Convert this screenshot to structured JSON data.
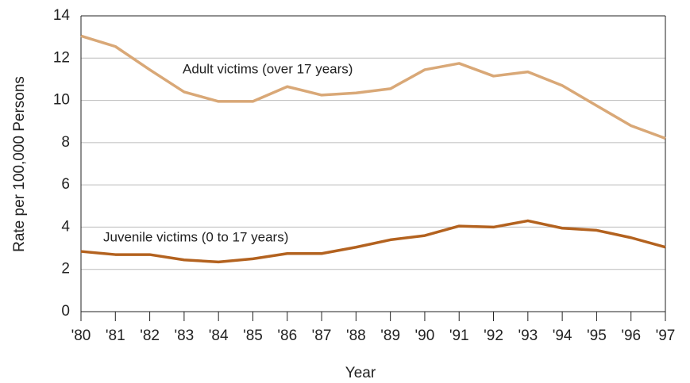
{
  "chart_data": {
    "type": "line",
    "xlabel": "Year",
    "ylabel": "Rate per 100,000 Persons",
    "categories": [
      "'80",
      "'81",
      "'82",
      "'83",
      "'84",
      "'85",
      "'86",
      "'87",
      "'88",
      "'89",
      "'90",
      "'91",
      "'92",
      "'93",
      "'94",
      "'95",
      "'96",
      "'97"
    ],
    "series": [
      {
        "name": "Adult victims (over 17 years)",
        "color": "#d9a877",
        "values": [
          13.05,
          12.55,
          11.45,
          10.4,
          9.95,
          9.95,
          10.65,
          10.25,
          10.35,
          10.55,
          11.45,
          11.75,
          11.15,
          11.35,
          10.7,
          9.75,
          8.8,
          8.2
        ]
      },
      {
        "name": "Juvenile victims (0 to 17 years)",
        "color": "#b3621f",
        "values": [
          2.85,
          2.7,
          2.7,
          2.45,
          2.35,
          2.5,
          2.75,
          2.75,
          3.05,
          3.4,
          3.6,
          4.05,
          4.0,
          4.3,
          3.95,
          3.85,
          3.5,
          3.05
        ]
      }
    ],
    "ylim": [
      0,
      14
    ],
    "yticks": [
      0,
      2,
      4,
      6,
      8,
      10,
      12,
      14
    ],
    "grid": true
  }
}
